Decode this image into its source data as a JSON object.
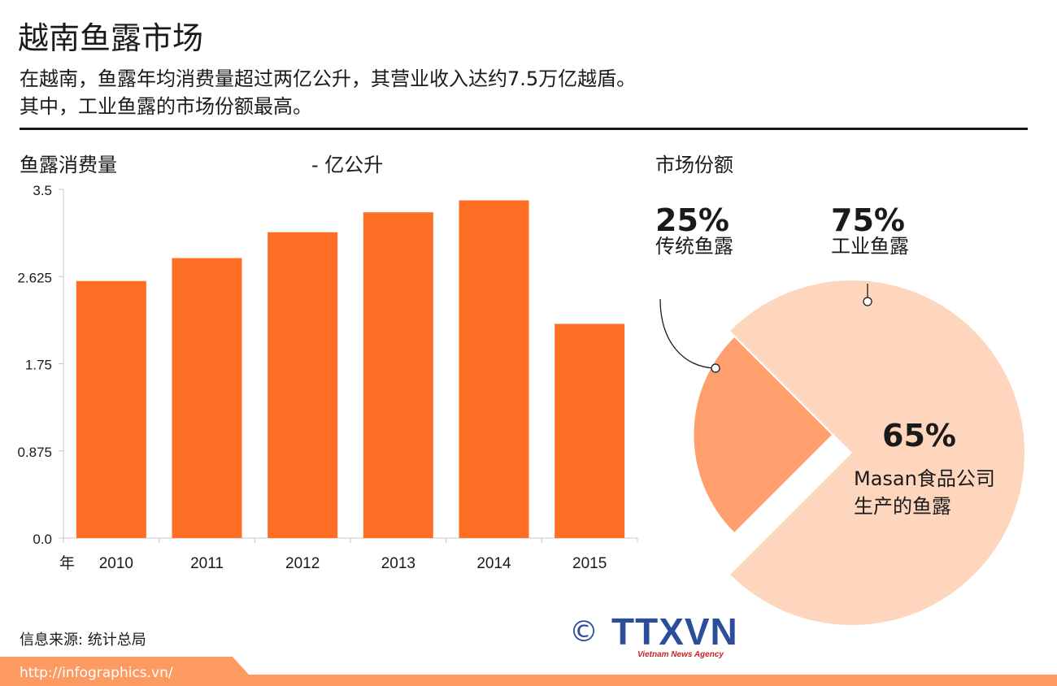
{
  "header": {
    "title": "越南鱼露市场",
    "subtitle_line1": "在越南，鱼露年均消费量超过两亿公升，其营业收入达约7.5万亿越盾。",
    "subtitle_line2": "其中，工业鱼露的市场份额最高。"
  },
  "bar_section": {
    "label": "鱼露消费量",
    "unit": "- 亿公升",
    "x_prefix": "年"
  },
  "pie_section": {
    "label": "市场份额",
    "traditional": {
      "pct": "25%",
      "label": "传统鱼露"
    },
    "industrial": {
      "pct": "75%",
      "label": "工业鱼露"
    },
    "masan": {
      "pct": "65%",
      "label_line1": "Masan食品公司",
      "label_line2": "生产的鱼露"
    }
  },
  "footer": {
    "source": "信息来源: 统计总局",
    "url": "http://infographics.vn/",
    "logo_text": "TTXVN",
    "logo_sub": "Vietnam News Agency",
    "copyright": "©"
  },
  "colors": {
    "bar": "#fe6e24",
    "traditional": "#ff9f6d",
    "industrial": "#fdd6bd",
    "footer_bar": "#fd9a61",
    "logo": "#2b4d9a"
  },
  "chart_data": [
    {
      "type": "bar",
      "categories": [
        "2010",
        "2011",
        "2012",
        "2013",
        "2014",
        "2015"
      ],
      "values": [
        2.58,
        2.81,
        3.07,
        3.27,
        3.39,
        2.15
      ],
      "yticks": [
        "0.0",
        "0.875",
        "1.75",
        "2.625",
        "3.5"
      ],
      "ylim": [
        0,
        3.5
      ],
      "title": "鱼露消费量",
      "ylabel": "- 亿公升",
      "xlabel": "",
      "grid": false
    },
    {
      "type": "pie",
      "labels": [
        "传统鱼露",
        "工业鱼露"
      ],
      "values": [
        25,
        75
      ],
      "sub_segment": {
        "label": "Masan食品公司生产的鱼露",
        "value": 65
      }
    }
  ]
}
